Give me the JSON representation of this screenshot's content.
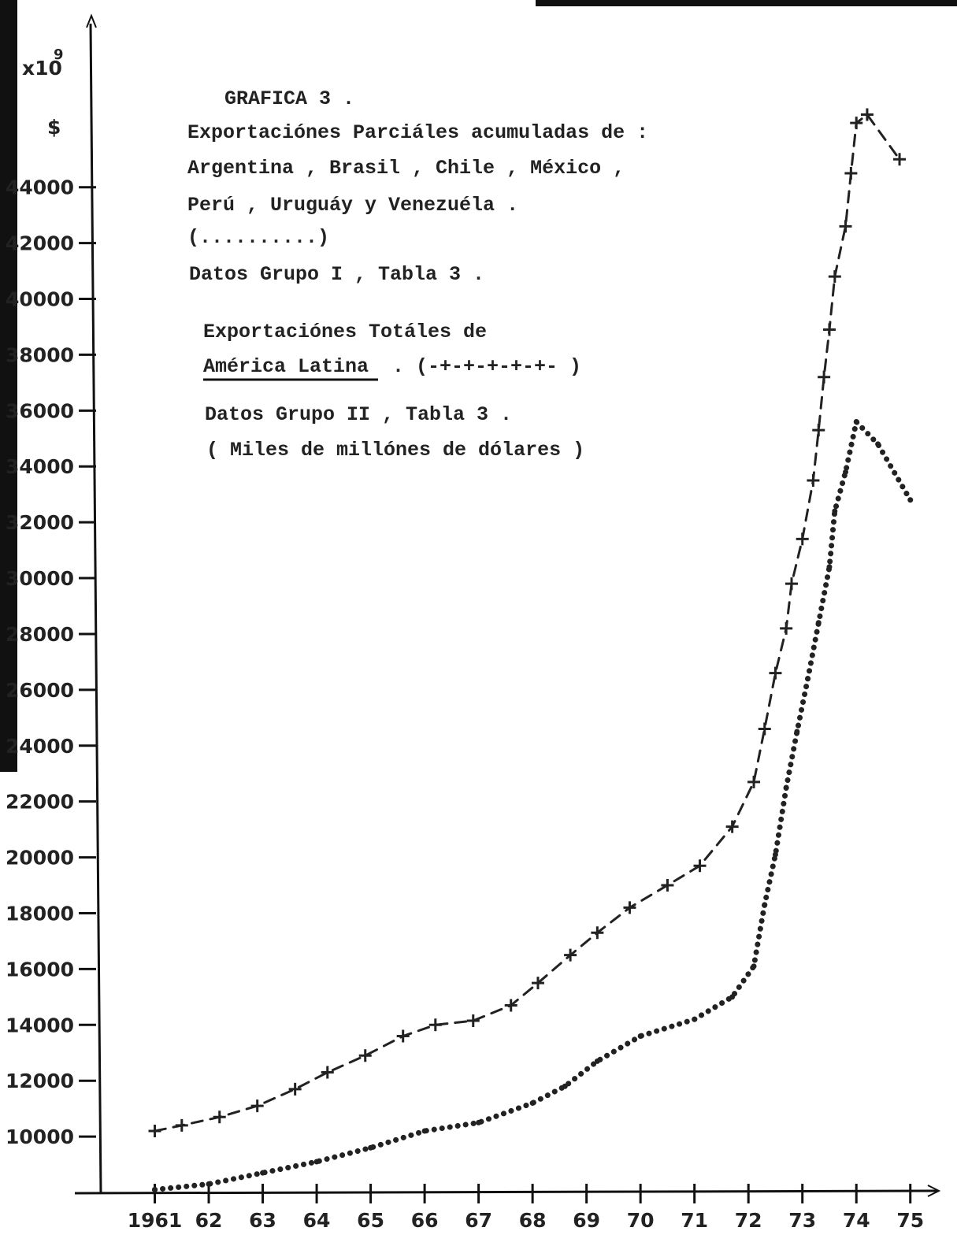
{
  "chart_data": {
    "type": "line",
    "title": "GRAFICA  3 .",
    "annotations": [
      "Exportaciónes Parciáles acumuladas de :",
      "Argentina , Brasil , Chile , México ,",
      "Perú , Uruguáy  y  Venezuéla .",
      "(..........)",
      "Datos Grupo I , Tabla 3 .",
      "Exportaciónes Totáles de",
      "América Latina",
      ".  (-+-+-+-+-+- )",
      "Datos Grupo II , Tabla 3 .",
      "( Miles de millónes de dólares )"
    ],
    "y_unit": "x10",
    "y_unit_exponent": "9",
    "y_currency": "$",
    "xlim": [
      1960,
      1975.5
    ],
    "xticks": [
      {
        "value": 1961,
        "label": "1961"
      },
      {
        "value": 1962,
        "label": "62"
      },
      {
        "value": 1963,
        "label": "63"
      },
      {
        "value": 1964,
        "label": "64"
      },
      {
        "value": 1965,
        "label": "65"
      },
      {
        "value": 1966,
        "label": "66"
      },
      {
        "value": 1967,
        "label": "67"
      },
      {
        "value": 1968,
        "label": "68"
      },
      {
        "value": 1969,
        "label": "69"
      },
      {
        "value": 1970,
        "label": "70"
      },
      {
        "value": 1971,
        "label": "71"
      },
      {
        "value": 1972,
        "label": "72"
      },
      {
        "value": 1973,
        "label": "73"
      },
      {
        "value": 1974,
        "label": "74"
      },
      {
        "value": 1975,
        "label": "75"
      }
    ],
    "ylim": [
      8000,
      50000
    ],
    "yticks": [
      10000,
      12000,
      14000,
      16000,
      18000,
      20000,
      22000,
      24000,
      26000,
      28000,
      30000,
      32000,
      34000,
      36000,
      38000,
      40000,
      42000,
      44000
    ],
    "series": [
      {
        "color": "#222222",
        "style": "dash-cross",
        "x": [
          1961,
          1961.5,
          1962.2,
          1962.9,
          1963.6,
          1964.2,
          1964.9,
          1965.6,
          1966.2,
          1966.9,
          1967.6,
          1968.1,
          1968.7,
          1969.2,
          1969.8,
          1970.5,
          1971.1,
          1971.7,
          1972.1,
          1972.3,
          1972.5,
          1972.7,
          1972.8,
          1973,
          1973.2,
          1973.3,
          1973.4,
          1973.5,
          1973.6,
          1973.8,
          1973.9,
          1974,
          1974.2,
          1974.8
        ],
        "values": [
          10200,
          10400,
          10700,
          11100,
          11700,
          12300,
          12900,
          13600,
          14000,
          14150,
          14700,
          15500,
          16500,
          17300,
          18200,
          19000,
          19700,
          21100,
          22700,
          24600,
          26600,
          28200,
          29800,
          31400,
          33500,
          35300,
          37200,
          38900,
          40800,
          42600,
          44500,
          46300,
          46600,
          45000
        ]
      },
      {
        "color": "#222222",
        "style": "dots",
        "x": [
          1961,
          1962,
          1963,
          1964,
          1965,
          1966,
          1967,
          1968,
          1968.6,
          1969.2,
          1970,
          1971,
          1971.7,
          1972.1,
          1972.3,
          1972.5,
          1972.7,
          1972.9,
          1973.1,
          1973.3,
          1973.5,
          1973.6,
          1973.8,
          1974,
          1974.4,
          1975
        ],
        "values": [
          8100,
          8300,
          8700,
          9100,
          9600,
          10200,
          10500,
          11200,
          11800,
          12700,
          13600,
          14200,
          15000,
          16100,
          18300,
          20100,
          22500,
          24500,
          26400,
          28400,
          30400,
          32400,
          33800,
          35600,
          34800,
          32800
        ]
      }
    ]
  }
}
